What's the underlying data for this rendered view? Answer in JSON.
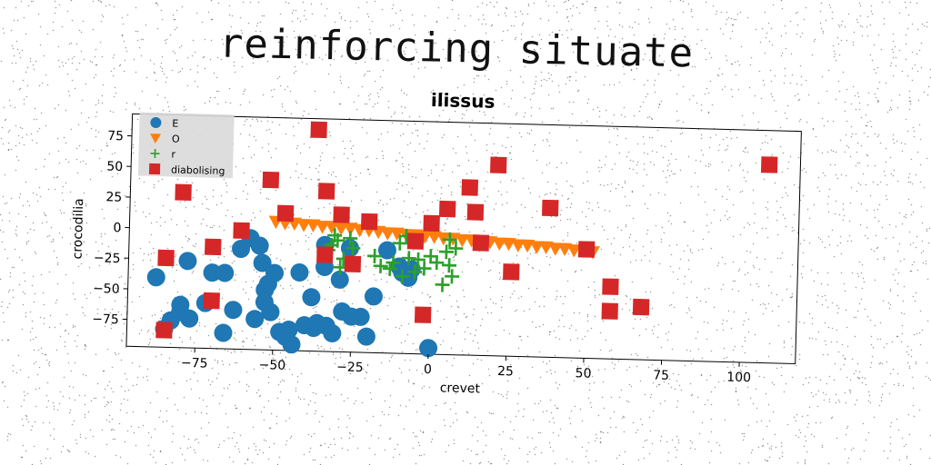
{
  "page": {
    "title": "reinforcing situate"
  },
  "colors": {
    "E": "#1f77b4",
    "O": "#ff7f0e",
    "r": "#2ca02c",
    "diabolising": "#d62728",
    "axes": "#000000",
    "legend_bg": "#d9d9d9"
  },
  "chart_data": {
    "type": "scatter",
    "title": "ilissus",
    "xlabel": "crevet",
    "ylabel": "crocodilia",
    "xlim": [
      -97,
      118
    ],
    "ylim": [
      -97,
      93
    ],
    "xticks": [
      -75,
      -50,
      -25,
      0,
      25,
      50,
      75,
      100
    ],
    "yticks": [
      -75,
      -50,
      -25,
      0,
      25,
      50,
      75
    ],
    "grid": false,
    "legend": "top-left",
    "series": [
      {
        "name": "E",
        "marker": "circle",
        "points": [
          [
            -88,
            -40
          ],
          [
            -85,
            -82
          ],
          [
            -83,
            -75
          ],
          [
            -80,
            -68
          ],
          [
            -80,
            -62
          ],
          [
            -78,
            -26
          ],
          [
            -77,
            -73
          ],
          [
            -72,
            -60
          ],
          [
            -70,
            -35
          ],
          [
            -66,
            -35
          ],
          [
            -66,
            -84
          ],
          [
            -63,
            -65
          ],
          [
            -61,
            -15
          ],
          [
            -58,
            -6
          ],
          [
            -56,
            -72
          ],
          [
            -55,
            -12
          ],
          [
            -54,
            -26
          ],
          [
            -53,
            -48
          ],
          [
            -53,
            -58
          ],
          [
            -52,
            -43
          ],
          [
            -51,
            -66
          ],
          [
            -50,
            -34
          ],
          [
            -48,
            -82
          ],
          [
            -46,
            -86
          ],
          [
            -45,
            -80
          ],
          [
            -44,
            -92
          ],
          [
            -42,
            -33
          ],
          [
            -40,
            -76
          ],
          [
            -38,
            -53
          ],
          [
            -37,
            -78
          ],
          [
            -36,
            -74
          ],
          [
            -34,
            -10
          ],
          [
            -34,
            -28
          ],
          [
            -33,
            -76
          ],
          [
            -31,
            -82
          ],
          [
            -29,
            -38
          ],
          [
            -28,
            -64
          ],
          [
            -26,
            -12
          ],
          [
            -25,
            -68
          ],
          [
            -22,
            -68
          ],
          [
            -20,
            -84
          ],
          [
            -18,
            -51
          ],
          [
            -14,
            -13
          ],
          [
            -10,
            -26
          ],
          [
            -9,
            -31
          ],
          [
            -8,
            -31
          ],
          [
            -7,
            -35
          ],
          [
            -6,
            -28
          ],
          [
            0,
            -92
          ]
        ]
      },
      {
        "name": "O",
        "marker": "triangle-down",
        "points": [
          [
            -50,
            8
          ],
          [
            -47,
            7
          ],
          [
            -44,
            7
          ],
          [
            -41,
            6
          ],
          [
            -38,
            6
          ],
          [
            -35,
            5
          ],
          [
            -32,
            5
          ],
          [
            -29,
            4
          ],
          [
            -26,
            4
          ],
          [
            -23,
            3
          ],
          [
            -20,
            3
          ],
          [
            -17,
            2
          ],
          [
            -14,
            1
          ],
          [
            -11,
            1
          ],
          [
            -8,
            0
          ],
          [
            -5,
            0
          ],
          [
            -2,
            -1
          ],
          [
            1,
            -1
          ],
          [
            4,
            -2
          ],
          [
            7,
            -2
          ],
          [
            10,
            -3
          ],
          [
            13,
            -3
          ],
          [
            16,
            -4
          ],
          [
            19,
            -4
          ],
          [
            22,
            -5
          ],
          [
            25,
            -5
          ],
          [
            28,
            -6
          ],
          [
            31,
            -6
          ],
          [
            34,
            -7
          ],
          [
            37,
            -7
          ],
          [
            40,
            -8
          ],
          [
            43,
            -8
          ],
          [
            46,
            -9
          ],
          [
            49,
            -9
          ],
          [
            52,
            -10
          ]
        ]
      },
      {
        "name": "r",
        "marker": "plus",
        "points": [
          [
            -33,
            -14
          ],
          [
            -32,
            -10
          ],
          [
            -31,
            -2
          ],
          [
            -30,
            -6
          ],
          [
            -29,
            -28
          ],
          [
            -28,
            -21
          ],
          [
            -26,
            -4
          ],
          [
            -25,
            -12
          ],
          [
            -18,
            -18
          ],
          [
            -16,
            -26
          ],
          [
            -13,
            -28
          ],
          [
            -12,
            -23
          ],
          [
            -10,
            -7
          ],
          [
            -9,
            -34
          ],
          [
            -8,
            -1
          ],
          [
            -7,
            -19
          ],
          [
            -5,
            -30
          ],
          [
            -4,
            -20
          ],
          [
            -2,
            -27
          ],
          [
            0,
            -17
          ],
          [
            2,
            -22
          ],
          [
            4,
            -40
          ],
          [
            5,
            -13
          ],
          [
            6,
            -3
          ],
          [
            6,
            -24
          ],
          [
            7,
            -33
          ],
          [
            8,
            -10
          ]
        ]
      },
      {
        "name": "diabolising",
        "marker": "square",
        "points": [
          [
            -85,
            -83
          ],
          [
            -85,
            -24
          ],
          [
            -80,
            30
          ],
          [
            -70,
            -14
          ],
          [
            -70,
            -58
          ],
          [
            -61,
            0
          ],
          [
            -52,
            42
          ],
          [
            -47,
            15
          ],
          [
            -37,
            84
          ],
          [
            -34,
            34
          ],
          [
            -34,
            -18
          ],
          [
            -29,
            15
          ],
          [
            -25,
            -25
          ],
          [
            -20,
            10
          ],
          [
            -5,
            -5
          ],
          [
            -2,
            -65
          ],
          [
            0,
            10
          ],
          [
            5,
            22
          ],
          [
            12,
            40
          ],
          [
            14,
            20
          ],
          [
            16,
            -5
          ],
          [
            21,
            59
          ],
          [
            26,
            -28
          ],
          [
            38,
            25
          ],
          [
            50,
            -8
          ],
          [
            58,
            -38
          ],
          [
            58,
            -58
          ],
          [
            68,
            -54
          ],
          [
            108,
            65
          ]
        ]
      }
    ]
  }
}
